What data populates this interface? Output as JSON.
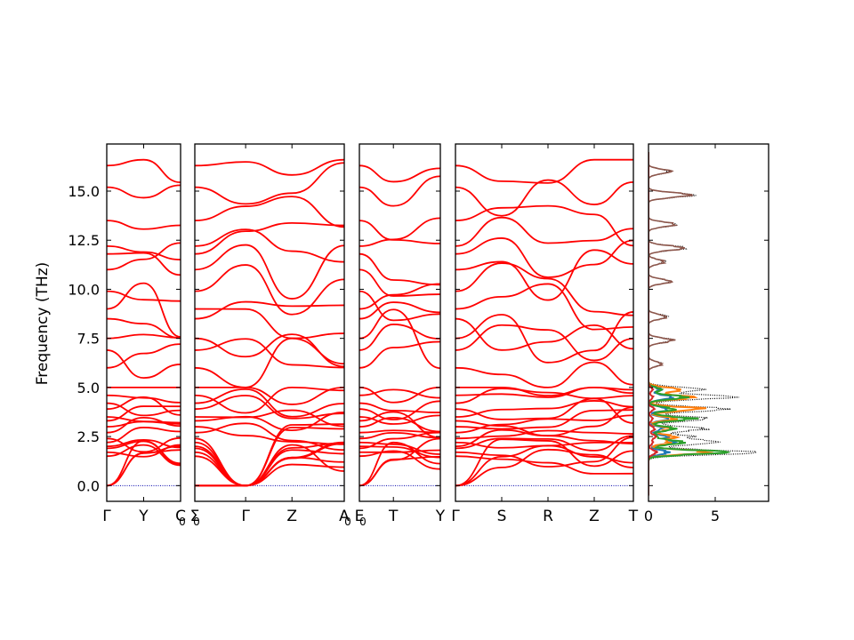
{
  "chart_data": {
    "type": "line",
    "title": "",
    "ylabel": "Frequency (THz)",
    "ylim": [
      -0.8,
      17.4
    ],
    "yticks": [
      "0.0",
      "2.5",
      "5.0",
      "7.5",
      "10.0",
      "12.5",
      "15.0"
    ],
    "ytick_values": [
      0,
      2.5,
      5,
      7.5,
      10,
      12.5,
      15
    ],
    "band_color": "#ff0000",
    "zero_line_color": "#0000aa",
    "panels": [
      {
        "id": "p1",
        "kpoints": [
          "Γ",
          "Y",
          "C"
        ],
        "kpos": [
          0,
          0.5,
          1
        ]
      },
      {
        "id": "p2",
        "kpoints": [
          "Σ",
          "Γ",
          "Z",
          "A"
        ],
        "kpos": [
          0,
          0.34,
          0.65,
          1
        ]
      },
      {
        "id": "p3",
        "kpoints": [
          "E",
          "T",
          "Y"
        ],
        "kpos": [
          0,
          0.42,
          1
        ]
      },
      {
        "id": "p4",
        "kpoints": [
          "Γ",
          "S",
          "R",
          "Z",
          "T"
        ],
        "kpos": [
          0,
          0.26,
          0.52,
          0.78,
          1
        ]
      }
    ],
    "subscripts": [
      "0",
      "0",
      "0",
      "0"
    ],
    "dos": {
      "xlabel": "",
      "xlim": [
        0,
        9
      ],
      "xticks": [
        "0",
        "5"
      ],
      "xtick_values": [
        0,
        5
      ],
      "series_colors": [
        "#1f77b4",
        "#ff7f0e",
        "#2ca02c",
        "#d62728",
        "#8c564b",
        "#000000"
      ]
    }
  }
}
